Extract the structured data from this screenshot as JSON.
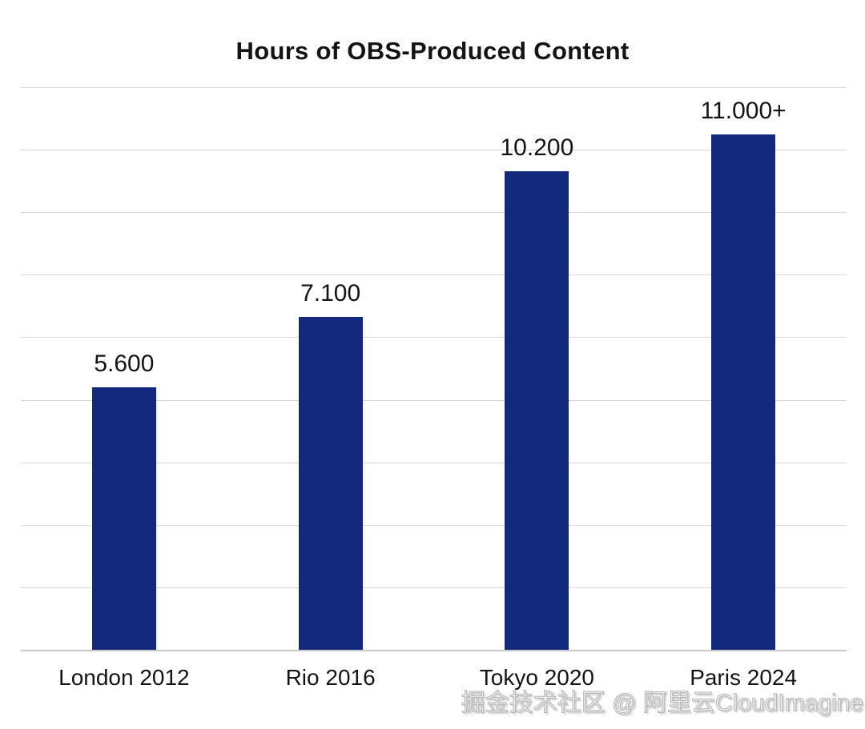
{
  "title": "Hours of OBS-Produced Content",
  "watermark": "掘金技术社区 @ 阿里云CloudImagine",
  "colors": {
    "bar": "#13297d",
    "gridline": "#d8d8d8",
    "axis_line": "#c9c9c9",
    "text": "#141414",
    "watermark_fill": "#f1f1f1",
    "watermark_edge": "#b5b5b5",
    "background": "#ffffff"
  },
  "chart_data": {
    "type": "bar",
    "title": "Hours of OBS-Produced Content",
    "categories": [
      "London 2012",
      "Rio 2016",
      "Tokyo 2020",
      "Paris 2024"
    ],
    "values": [
      5600,
      7100,
      10200,
      11000
    ],
    "value_labels": [
      "5.600",
      "7.100",
      "10.200",
      "11.000+"
    ],
    "xlabel": "",
    "ylabel": "",
    "ylim": [
      0,
      12000
    ],
    "grid": "horizontal",
    "gridline_intervals": 9,
    "legend": "none",
    "y_tick_labels": "none"
  }
}
